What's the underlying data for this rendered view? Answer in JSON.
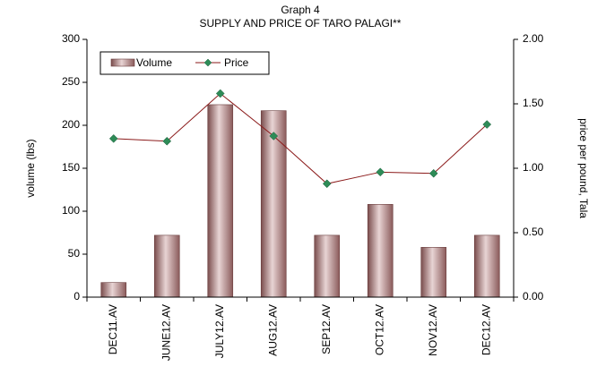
{
  "chart_data": {
    "type": "bar",
    "title": "Graph 4",
    "subtitle": "SUPPLY AND PRICE OF TARO PALAGI**",
    "ylabel": "volume (lbs)",
    "y2label": "price per pound, Tala",
    "categories": [
      "DEC11.AV",
      "JUNE12.AV",
      "JULY12.AV",
      "AUG12.AV",
      "SEP12.AV",
      "OCT12.AV",
      "NOV12.AV",
      "DEC12.AV"
    ],
    "series": [
      {
        "name": "Volume",
        "type": "bar",
        "color": "#b48484",
        "values": [
          17,
          72,
          224,
          217,
          72,
          108,
          58,
          72
        ]
      },
      {
        "name": "Price",
        "type": "line",
        "axis": "y2",
        "color": "#8b1a1a",
        "marker_color": "#2e8b57",
        "values": [
          1.23,
          1.21,
          1.58,
          1.25,
          0.88,
          0.97,
          0.96,
          1.34
        ]
      }
    ],
    "ylim": [
      0,
      300
    ],
    "yticks": [
      0,
      50,
      100,
      150,
      200,
      250,
      300
    ],
    "y2lim": [
      0,
      2
    ],
    "y2ticks": [
      {
        "value": 0,
        "label": "0.00"
      },
      {
        "value": 0.5,
        "label": "0.50"
      },
      {
        "value": 1,
        "label": "1.00"
      },
      {
        "value": 1.5,
        "label": "1.50"
      },
      {
        "value": 2,
        "label": "2.00"
      }
    ],
    "legend": "upper left"
  }
}
